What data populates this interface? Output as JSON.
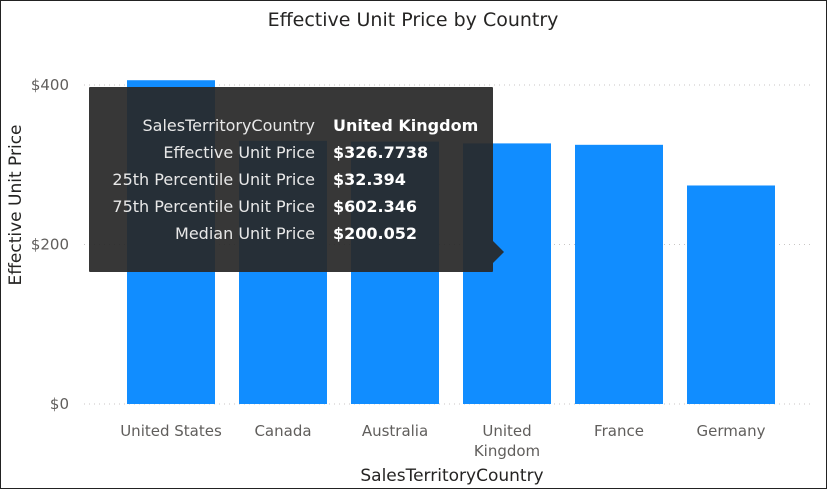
{
  "chart_data": {
    "type": "bar",
    "title": "Effective Unit Price by Country",
    "xlabel": "SalesTerritoryCountry",
    "ylabel": "Effective Unit Price",
    "categories": [
      "United States",
      "Canada",
      "Australia",
      "United Kingdom",
      "France",
      "Germany"
    ],
    "category_lines": [
      [
        "United States"
      ],
      [
        "Canada"
      ],
      [
        "Australia"
      ],
      [
        "United",
        "Kingdom"
      ],
      [
        "France"
      ],
      [
        "Germany"
      ]
    ],
    "values": [
      406,
      330,
      329,
      326.7738,
      325,
      274
    ],
    "ylim": [
      0,
      400
    ],
    "yticks": [
      0,
      200,
      400
    ],
    "ytick_labels": [
      "$0",
      "$200",
      "$400"
    ],
    "grid": true,
    "bar_color": "#118DFF",
    "tooltip": {
      "rows": [
        {
          "key": "SalesTerritoryCountry",
          "value": "United Kingdom"
        },
        {
          "key": "Effective Unit Price",
          "value": "$326.7738"
        },
        {
          "key": "25th Percentile Unit Price",
          "value": "$32.394"
        },
        {
          "key": "75th Percentile Unit Price",
          "value": "$602.346"
        },
        {
          "key": "Median Unit Price",
          "value": "$200.052"
        }
      ]
    }
  }
}
